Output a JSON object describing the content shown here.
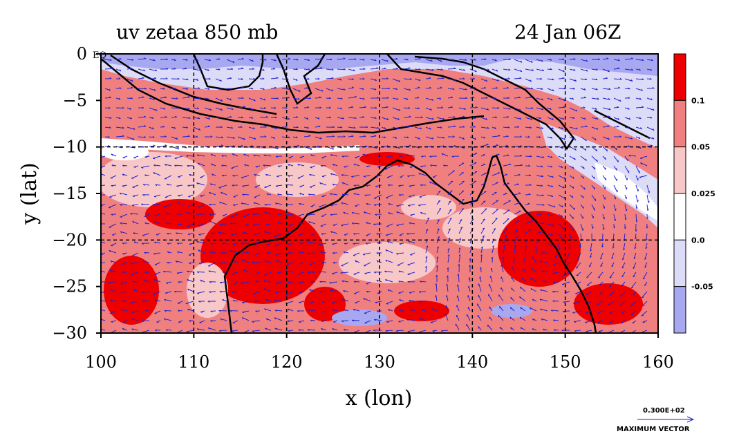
{
  "title_left": "uv zetaa 850 mb",
  "title_right": "24 Jan 06Z",
  "xlabel": "x (lon)",
  "ylabel": "y (lat)",
  "eq_label": "EQ",
  "x_ticks": [
    "100",
    "110",
    "120",
    "130",
    "140",
    "150",
    "160"
  ],
  "y_ticks": [
    "0",
    "−5",
    "−10",
    "−15",
    "−20",
    "−25",
    "−30"
  ],
  "colorbar": {
    "labels": [
      "0.1",
      "0.05",
      "0.025",
      "0.0",
      "-0.05"
    ],
    "colors": [
      "#ee0000",
      "#f08080",
      "#f8c8c8",
      "#ffffff",
      "#dcdcf8",
      "#a8a8f0"
    ]
  },
  "vector_legend": {
    "magnitude": "0.300E+02",
    "label": "MAXIMUM VECTOR",
    "color": "#2222cc"
  },
  "map": {
    "lon_range": [
      100,
      160
    ],
    "lat_range": [
      -30,
      0
    ],
    "grid_lons": [
      110,
      120,
      130,
      140,
      150
    ],
    "grid_lats": [
      -10,
      -20
    ]
  }
}
